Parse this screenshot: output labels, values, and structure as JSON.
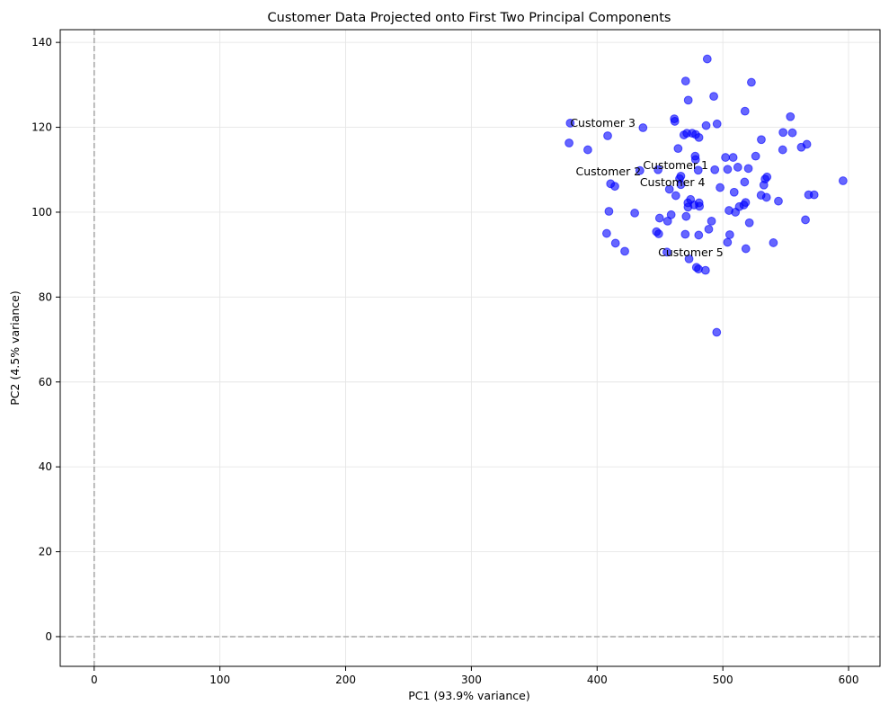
{
  "chart_data": {
    "type": "scatter",
    "title": "Customer Data Projected onto First Two Principal Components",
    "xlabel": "PC1 (93.9% variance)",
    "ylabel": "PC2 (4.5% variance)",
    "xlim": [
      -27,
      625
    ],
    "ylim": [
      -7,
      143
    ],
    "xticks": [
      0,
      100,
      200,
      300,
      400,
      500,
      600
    ],
    "yticks": [
      0,
      20,
      40,
      60,
      80,
      100,
      120,
      140
    ],
    "grid": true,
    "reference_lines": {
      "x": 0,
      "y": 0
    },
    "colors": {
      "points": "#0000ff",
      "grid": "#e6e6e6",
      "reference": "#a6a6a6"
    },
    "series": [
      {
        "points": [
          [
            377.7,
            116.3
          ],
          [
            378.6,
            121.0
          ],
          [
            392.6,
            114.7
          ],
          [
            407.6,
            95.0
          ],
          [
            408.4,
            118.0
          ],
          [
            409.4,
            100.2
          ],
          [
            410.7,
            106.7
          ],
          [
            414.1,
            106.1
          ],
          [
            414.6,
            92.7
          ],
          [
            422.0,
            90.8
          ],
          [
            429.9,
            99.8
          ],
          [
            434.0,
            109.8
          ],
          [
            436.5,
            119.9
          ],
          [
            447.2,
            95.4
          ],
          [
            448.5,
            110.0
          ],
          [
            449.0,
            94.9
          ],
          [
            449.7,
            98.6
          ],
          [
            455.5,
            90.6
          ],
          [
            456.1,
            97.9
          ],
          [
            457.5,
            105.4
          ],
          [
            458.9,
            99.4
          ],
          [
            461.4,
            122.0
          ],
          [
            461.8,
            121.4
          ],
          [
            462.6,
            103.9
          ],
          [
            464.4,
            115.0
          ],
          [
            465.6,
            107.9
          ],
          [
            466.6,
            106.5
          ],
          [
            466.6,
            108.5
          ],
          [
            469.0,
            118.2
          ],
          [
            470.1,
            94.8
          ],
          [
            470.4,
            130.9
          ],
          [
            470.8,
            99.0
          ],
          [
            471.4,
            118.6
          ],
          [
            472.2,
            102.2
          ],
          [
            472.3,
            101.2
          ],
          [
            472.5,
            126.4
          ],
          [
            473.1,
            89.0
          ],
          [
            474.3,
            103.0
          ],
          [
            475.6,
            118.6
          ],
          [
            477.1,
            101.7
          ],
          [
            478.0,
            113.2
          ],
          [
            478.3,
            112.4
          ],
          [
            478.4,
            118.3
          ],
          [
            479.0,
            87.0
          ],
          [
            480.4,
            109.9
          ],
          [
            480.6,
            86.6
          ],
          [
            480.8,
            94.6
          ],
          [
            481.0,
            117.6
          ],
          [
            481.1,
            102.2
          ],
          [
            481.4,
            101.4
          ],
          [
            486.2,
            86.3
          ],
          [
            486.7,
            120.4
          ],
          [
            487.6,
            136.1
          ],
          [
            488.8,
            96.0
          ],
          [
            491.0,
            97.9
          ],
          [
            492.8,
            127.3
          ],
          [
            493.6,
            110.0
          ],
          [
            495.1,
            71.7
          ],
          [
            495.4,
            120.8
          ],
          [
            497.8,
            105.8
          ],
          [
            502.1,
            112.9
          ],
          [
            503.7,
            92.9
          ],
          [
            503.8,
            110.1
          ],
          [
            504.9,
            100.4
          ],
          [
            505.5,
            94.7
          ],
          [
            508.2,
            112.9
          ],
          [
            509.0,
            104.7
          ],
          [
            510.0,
            100.0
          ],
          [
            511.9,
            110.6
          ],
          [
            513.1,
            101.3
          ],
          [
            516.7,
            101.7
          ],
          [
            517.3,
            107.1
          ],
          [
            517.6,
            123.8
          ],
          [
            518.1,
            102.3
          ],
          [
            518.3,
            91.4
          ],
          [
            520.3,
            110.3
          ],
          [
            521.1,
            97.5
          ],
          [
            522.7,
            130.6
          ],
          [
            526.1,
            113.2
          ],
          [
            530.4,
            104.0
          ],
          [
            530.6,
            117.1
          ],
          [
            532.6,
            106.4
          ],
          [
            533.6,
            107.8
          ],
          [
            534.7,
            103.5
          ],
          [
            535.1,
            108.3
          ],
          [
            540.2,
            92.8
          ],
          [
            544.2,
            102.6
          ],
          [
            547.6,
            114.7
          ],
          [
            547.9,
            118.8
          ],
          [
            553.7,
            122.5
          ],
          [
            555.3,
            118.7
          ],
          [
            562.4,
            115.3
          ],
          [
            565.7,
            98.2
          ],
          [
            566.8,
            116.0
          ],
          [
            568.2,
            104.1
          ],
          [
            572.6,
            104.1
          ],
          [
            595.6,
            107.4
          ]
        ]
      }
    ],
    "annotations": [
      {
        "label": "Customer 1",
        "x": 436.5,
        "y": 111.0
      },
      {
        "label": "Customer 2",
        "x": 383.0,
        "y": 109.5
      },
      {
        "label": "Customer 3",
        "x": 378.6,
        "y": 121.0
      },
      {
        "label": "Customer 4",
        "x": 434.0,
        "y": 107.0
      },
      {
        "label": "Customer 5",
        "x": 448.5,
        "y": 90.5
      }
    ]
  }
}
